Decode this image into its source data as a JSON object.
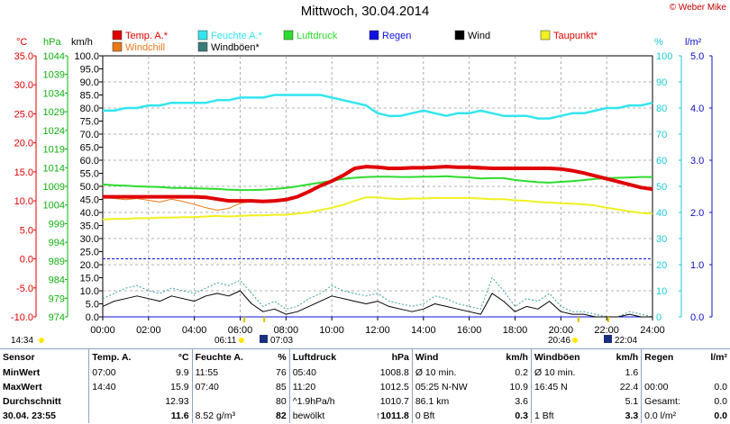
{
  "header": {
    "title": "Mittwoch, 30.04.2014",
    "credit": "© Weber Mike"
  },
  "colors": {
    "temp": "#e00000",
    "windchill": "#e87818",
    "feuchte": "#33e5f0",
    "windboeen": "#3a7a7a",
    "luftdruck": "#2ddc2d",
    "regen": "#1010e0",
    "wind": "#000000",
    "taupunkt": "#f0f020",
    "axis_temp": "#e00000",
    "axis_hpa": "#10b010",
    "axis_pct": "#20c8d8",
    "axis_rain": "#1010c0",
    "grid": "#999999"
  },
  "axes_units": {
    "temp": "°C",
    "hpa": "hPa",
    "kmh": "km/h",
    "pct": "%",
    "rain": "l/m²"
  },
  "chart_data": {
    "type": "line",
    "title": "Mittwoch, 30.04.2014",
    "x": [
      "00:00",
      "00:30",
      "01:00",
      "01:30",
      "02:00",
      "02:30",
      "03:00",
      "03:30",
      "04:00",
      "04:30",
      "05:00",
      "05:30",
      "06:00",
      "06:30",
      "07:00",
      "07:30",
      "08:00",
      "08:30",
      "09:00",
      "09:30",
      "10:00",
      "10:30",
      "11:00",
      "11:30",
      "12:00",
      "12:30",
      "13:00",
      "13:30",
      "14:00",
      "14:30",
      "15:00",
      "15:30",
      "16:00",
      "16:30",
      "17:00",
      "17:30",
      "18:00",
      "18:30",
      "19:00",
      "19:30",
      "20:00",
      "20:30",
      "21:00",
      "21:30",
      "22:00",
      "22:30",
      "23:00",
      "23:30",
      "24:00"
    ],
    "x_ticks": [
      "00:00",
      "02:00",
      "04:00",
      "06:00",
      "08:00",
      "10:00",
      "12:00",
      "14:00",
      "16:00",
      "18:00",
      "20:00",
      "22:00",
      "24:00"
    ],
    "xlim": [
      "00:00",
      "24:00"
    ],
    "axes": {
      "temp_c": {
        "ticks": [
          "35.0",
          "30.0",
          "25.0",
          "20.0",
          "15.0",
          "10.0",
          "5.0",
          "0.0",
          "-5.0",
          "-10.0"
        ],
        "range": [
          -10,
          35
        ]
      },
      "hpa": {
        "ticks": [
          "1044",
          "1039",
          "1034",
          "1029",
          "1024",
          "1019",
          "1014",
          "1009",
          "1004",
          "999",
          "994",
          "989",
          "984",
          "979",
          "974"
        ],
        "range": [
          974,
          1044
        ]
      },
      "kmh": {
        "ticks": [
          "100.0",
          "95.0",
          "90.0",
          "85.0",
          "80.0",
          "75.0",
          "70.0",
          "65.0",
          "60.0",
          "55.0",
          "50.0",
          "45.0",
          "40.0",
          "35.0",
          "30.0",
          "25.0",
          "20.0",
          "15.0",
          "10.0",
          "5.0",
          "0.0"
        ],
        "range": [
          0,
          100
        ]
      },
      "pct": {
        "ticks": [
          "100",
          "90",
          "80",
          "70",
          "60",
          "50",
          "40",
          "30",
          "20",
          "10",
          "0"
        ],
        "range": [
          0,
          100
        ]
      },
      "rain": {
        "ticks": [
          "5.0",
          "4.0",
          "3.0",
          "2.0",
          "1.0",
          "0.0"
        ],
        "range": [
          0,
          5
        ]
      }
    },
    "legend": [
      "Temp. A.*",
      "Windchill",
      "Feuchte A.*",
      "Windböen*",
      "Luftdruck",
      "Regen",
      "Wind",
      "Taupunkt*"
    ],
    "series": [
      {
        "name": "Temp. A.*",
        "axis": "temp_c",
        "values": [
          10.7,
          10.7,
          10.7,
          10.7,
          10.7,
          10.7,
          10.7,
          10.7,
          10.7,
          10.6,
          10.3,
          10.0,
          10.0,
          10.0,
          9.9,
          10.0,
          10.2,
          10.7,
          11.6,
          12.6,
          13.4,
          14.4,
          15.6,
          15.9,
          15.8,
          15.6,
          15.6,
          15.7,
          15.7,
          15.8,
          15.9,
          15.8,
          15.8,
          15.7,
          15.6,
          15.6,
          15.6,
          15.6,
          15.6,
          15.6,
          15.5,
          15.2,
          14.8,
          14.3,
          13.8,
          13.3,
          12.8,
          12.3,
          12.0
        ]
      },
      {
        "name": "Windchill",
        "axis": "temp_c",
        "values": [
          10.6,
          10.4,
          10.2,
          10.4,
          10.1,
          9.8,
          10.3,
          9.9,
          9.4,
          8.8,
          8.4,
          8.7,
          9.6,
          9.9,
          9.9,
          10.0,
          10.2,
          10.7,
          11.6,
          12.6,
          13.4,
          14.4,
          15.6,
          15.9,
          15.8,
          15.6,
          15.6,
          15.7,
          15.7,
          15.8,
          15.9,
          15.8,
          15.6,
          15.4,
          15.6,
          15.6,
          15.6,
          15.6,
          15.6,
          15.6,
          15.5,
          15.2,
          14.8,
          14.3,
          13.8,
          13.3,
          12.8,
          12.3,
          12.0
        ]
      },
      {
        "name": "Feuchte A.*",
        "axis": "pct",
        "values": [
          79,
          79,
          80,
          80,
          81,
          81,
          82,
          82,
          82,
          82,
          83,
          83,
          84,
          84,
          84,
          85,
          85,
          85,
          85,
          85,
          84,
          83,
          82,
          81,
          78,
          77,
          77,
          78,
          79,
          78,
          77,
          78,
          78,
          79,
          78,
          77,
          77,
          77,
          76,
          76,
          77,
          78,
          78,
          79,
          80,
          80,
          81,
          81,
          82
        ]
      },
      {
        "name": "Luftdruck",
        "axis": "hpa",
        "values": [
          1009.5,
          1009.3,
          1009.2,
          1009.0,
          1008.9,
          1008.8,
          1008.6,
          1008.6,
          1008.5,
          1008.4,
          1008.3,
          1008.1,
          1008.0,
          1008.0,
          1008.1,
          1008.3,
          1008.6,
          1009.0,
          1009.5,
          1010.0,
          1010.5,
          1011.0,
          1011.3,
          1011.5,
          1011.6,
          1011.6,
          1011.5,
          1011.5,
          1011.6,
          1011.6,
          1011.7,
          1011.5,
          1011.4,
          1011.1,
          1011.2,
          1011.2,
          1010.7,
          1010.4,
          1010.1,
          1010.0,
          1010.2,
          1010.4,
          1010.7,
          1011.0,
          1011.2,
          1011.3,
          1011.4,
          1011.5,
          1011.5
        ]
      },
      {
        "name": "Taupunkt*",
        "axis": "temp_c",
        "values": [
          6.8,
          6.9,
          6.9,
          7.0,
          7.0,
          7.1,
          7.1,
          7.2,
          7.2,
          7.3,
          7.4,
          7.3,
          7.4,
          7.5,
          7.5,
          7.6,
          7.6,
          7.8,
          8.0,
          8.4,
          8.8,
          9.3,
          10.0,
          10.6,
          10.6,
          10.4,
          10.3,
          10.4,
          10.4,
          10.5,
          10.5,
          10.5,
          10.5,
          10.4,
          10.3,
          10.3,
          10.1,
          10.0,
          9.8,
          9.7,
          9.6,
          9.5,
          9.4,
          9.2,
          8.8,
          8.5,
          8.2,
          7.9,
          7.8
        ]
      },
      {
        "name": "Wind",
        "axis": "kmh",
        "values": [
          4,
          6,
          7,
          8,
          7,
          6,
          8,
          7,
          6,
          8,
          9,
          8,
          10,
          5,
          2,
          3,
          1,
          2,
          4,
          6,
          8,
          7,
          6,
          5,
          6,
          4,
          3,
          2,
          3,
          5,
          4,
          3,
          2,
          1,
          9,
          6,
          2,
          4,
          3,
          6,
          2,
          1,
          1,
          0,
          0,
          0,
          1,
          0,
          0
        ]
      },
      {
        "name": "Windböen*",
        "axis": "kmh",
        "values": [
          7,
          9,
          11,
          12,
          10,
          9,
          11,
          10,
          9,
          11,
          13,
          12,
          14,
          9,
          4,
          6,
          3,
          4,
          7,
          9,
          12,
          10,
          9,
          8,
          9,
          6,
          5,
          4,
          5,
          8,
          7,
          5,
          4,
          3,
          15,
          10,
          4,
          7,
          6,
          9,
          4,
          2,
          2,
          1,
          0,
          0,
          2,
          1,
          0
        ]
      },
      {
        "name": "Regen",
        "axis": "rain",
        "values": [
          0.0,
          0.0,
          0.0,
          0.0,
          0.0,
          0.0,
          0.0,
          0.0,
          0.0,
          0.0,
          0.0,
          0.0,
          0.0,
          0.0,
          0.0,
          0.0,
          0.0,
          0.0,
          0.0,
          0.0,
          0.0,
          0.0,
          0.0,
          0.0,
          0.0,
          0.0,
          0.0,
          0.0,
          0.0,
          0.0,
          0.0,
          0.0,
          0.0,
          0.0,
          0.0,
          0.0,
          0.0,
          0.0,
          0.0,
          0.0,
          0.0,
          0.0,
          0.0,
          0.0,
          0.0,
          0.0,
          0.0,
          0.0,
          0.0
        ]
      }
    ],
    "reference_line": {
      "axis": "temp_c",
      "value": 0.0
    }
  },
  "sun": {
    "markers": [
      {
        "label": "14:34",
        "time": "14:34"
      },
      {
        "label": "06:11",
        "time": "06:11"
      },
      {
        "label": "07:03",
        "time": "07:03"
      },
      {
        "label": "20:46",
        "time": "20:46"
      },
      {
        "label": "22:04",
        "time": "22:04"
      }
    ]
  },
  "stats": {
    "headers": [
      "Sensor",
      "Temp. A.",
      "°C",
      "Feuchte A.",
      "%",
      "Luftdruck",
      "hPa",
      "Wind",
      "km/h",
      "Windböen",
      "km/h",
      "Regen",
      "l/m²"
    ],
    "rows": [
      [
        "MinWert",
        "07:00",
        "9.9",
        "11:55",
        "76",
        "05:40",
        "1008.8",
        "Ø 10 min.",
        "0.2",
        "Ø 10 min.",
        "1.6",
        "",
        ""
      ],
      [
        "MaxWert",
        "14:40",
        "15.9",
        "07:40",
        "85",
        "11:20",
        "1012.5",
        "05:25  N-NW",
        "10.9",
        "16:45  N",
        "22.4",
        "00:00",
        "0.0"
      ],
      [
        "Durchschnitt",
        "",
        "12.93",
        "",
        "80",
        "^1.9hPa/h",
        "1010.7",
        "86.1 km",
        "3.6",
        "",
        "5.1",
        "Gesamt:",
        "0.0"
      ],
      [
        "30.04.  23:55",
        "",
        "11.6",
        "8.52 g/m³",
        "82",
        "bewölkt",
        "↑1011.8",
        "0 Bft",
        "0.3",
        "1 Bft",
        "3.3",
        "0.0 l/m²",
        "0.0"
      ]
    ]
  }
}
